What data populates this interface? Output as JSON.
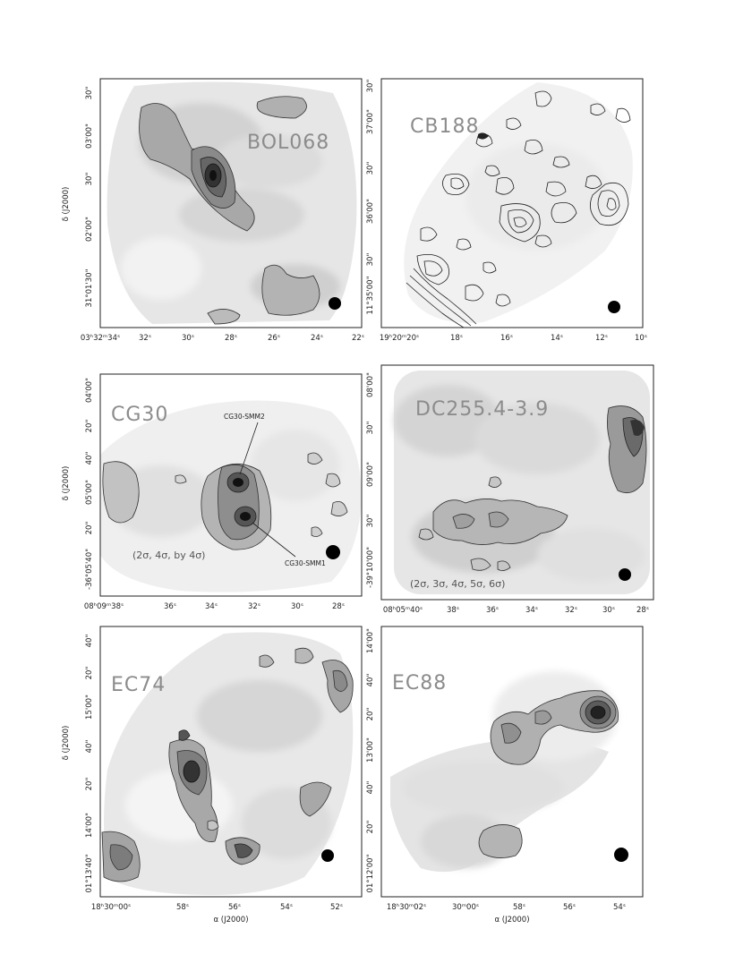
{
  "figure": {
    "panels": [
      {
        "id": "bol068",
        "title": "BOL068",
        "note": "",
        "sources": [],
        "x_ticks": [
          "03ʰ32ᵐ34ˢ",
          "32ˢ",
          "30ˢ",
          "28ˢ",
          "26ˢ",
          "24ˢ",
          "22ˢ"
        ],
        "y_ticks": [
          "31°01'30\"",
          "02'00\"",
          "30\"",
          "03'00\"",
          "30\""
        ],
        "ylabel": "δ (J2000)",
        "xlabel": ""
      },
      {
        "id": "cb188",
        "title": "CB188",
        "note": "",
        "sources": [],
        "x_ticks": [
          "19ʰ20ᵐ20ˢ",
          "18ˢ",
          "16ˢ",
          "14ˢ",
          "12ˢ",
          "10ˢ"
        ],
        "y_ticks": [
          "11°35'00\"",
          "30\"",
          "36'00\"",
          "30\"",
          "37'00\"",
          "30\""
        ],
        "ylabel": "",
        "xlabel": ""
      },
      {
        "id": "cg30",
        "title": "CG30",
        "note": "(2σ, 4σ, by 4σ)",
        "sources": [
          "CG30-SMM2",
          "CG30-SMM1"
        ],
        "x_ticks": [
          "08ʰ09ᵐ38ˢ",
          "36ˢ",
          "34ˢ",
          "32ˢ",
          "30ˢ",
          "28ˢ"
        ],
        "y_ticks": [
          "-36°05'40\"",
          "20\"",
          "05'00\"",
          "40\"",
          "20\"",
          "04'00\""
        ],
        "ylabel": "δ (J2000)",
        "xlabel": ""
      },
      {
        "id": "dc255",
        "title": "DC255.4-3.9",
        "note": "(2σ, 3σ, 4σ, 5σ, 6σ)",
        "sources": [],
        "x_ticks": [
          "08ʰ05ᵐ40ˢ",
          "38ˢ",
          "36ˢ",
          "34ˢ",
          "32ˢ",
          "30ˢ",
          "28ˢ"
        ],
        "y_ticks": [
          "-39°10'00\"",
          "30\"",
          "09'00\"",
          "30\"",
          "08'00\""
        ],
        "ylabel": "",
        "xlabel": ""
      },
      {
        "id": "ec74",
        "title": "EC74",
        "note": "",
        "sources": [],
        "x_ticks": [
          "18ʰ30ᵐ00ˢ",
          "58ˢ",
          "56ˢ",
          "54ˢ",
          "52ˢ"
        ],
        "y_ticks": [
          "01°13'40\"",
          "14'00\"",
          "20\"",
          "40\"",
          "15'00\"",
          "20\"",
          "40\""
        ],
        "ylabel": "δ (J2000)",
        "xlabel": "α (J2000)"
      },
      {
        "id": "ec88",
        "title": "EC88",
        "note": "",
        "sources": [],
        "x_ticks": [
          "18ʰ30ᵐ02ˢ",
          "30ᵐ00ˢ",
          "58ˢ",
          "56ˢ",
          "54ˢ"
        ],
        "y_ticks": [
          "01°12'00\"",
          "20\"",
          "40\"",
          "13'00\"",
          "20\"",
          "40\"",
          "14'00\""
        ],
        "ylabel": "",
        "xlabel": "α (J2000)"
      }
    ]
  }
}
